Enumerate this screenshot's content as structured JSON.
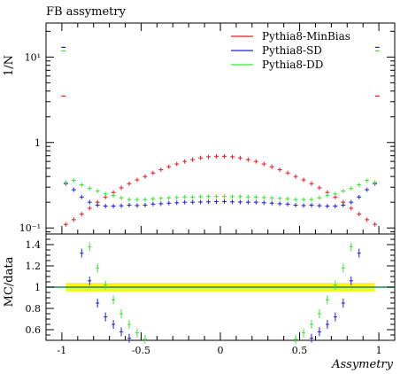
{
  "chart_data": [
    {
      "type": "scatter",
      "title": "FB assymetry",
      "ylabel": "1/N",
      "ylim": [
        0.085,
        25
      ],
      "yscale": "log",
      "yticks": [
        {
          "value": 0.1,
          "label": "10⁻¹"
        },
        {
          "value": 1,
          "label": "1"
        },
        {
          "value": 10,
          "label": "10¹"
        }
      ],
      "xlim": [
        -1.1,
        1.1
      ],
      "legend_position": "top-right",
      "series": [
        {
          "name": "Pythia8-MinBias",
          "color": "#e8191e",
          "x": [
            -0.975,
            -0.925,
            -0.875,
            -0.825,
            -0.775,
            -0.725,
            -0.675,
            -0.625,
            -0.575,
            -0.525,
            -0.475,
            -0.425,
            -0.375,
            -0.325,
            -0.275,
            -0.225,
            -0.175,
            -0.125,
            -0.075,
            -0.025,
            0.025,
            0.075,
            0.125,
            0.175,
            0.225,
            0.275,
            0.325,
            0.375,
            0.425,
            0.475,
            0.525,
            0.575,
            0.625,
            0.675,
            0.725,
            0.775,
            0.825,
            0.875,
            0.925,
            0.975
          ],
          "y": [
            0.11,
            0.125,
            0.145,
            0.17,
            0.2,
            0.23,
            0.26,
            0.295,
            0.33,
            0.365,
            0.4,
            0.44,
            0.48,
            0.52,
            0.56,
            0.6,
            0.63,
            0.66,
            0.68,
            0.69,
            0.69,
            0.68,
            0.66,
            0.63,
            0.6,
            0.56,
            0.52,
            0.48,
            0.44,
            0.4,
            0.365,
            0.33,
            0.295,
            0.26,
            0.23,
            0.2,
            0.17,
            0.145,
            0.125,
            0.11
          ]
        },
        {
          "name": "Pythia8-SD",
          "color": "#1e1edc",
          "x": [
            -0.975,
            -0.925,
            -0.875,
            -0.825,
            -0.775,
            -0.725,
            -0.675,
            -0.625,
            -0.575,
            -0.525,
            -0.475,
            -0.425,
            -0.375,
            -0.325,
            -0.275,
            -0.225,
            -0.175,
            -0.125,
            -0.075,
            -0.025,
            0.025,
            0.075,
            0.125,
            0.175,
            0.225,
            0.275,
            0.325,
            0.375,
            0.425,
            0.475,
            0.525,
            0.575,
            0.625,
            0.675,
            0.725,
            0.775,
            0.825,
            0.875,
            0.925,
            0.975
          ],
          "y": [
            0.33,
            0.28,
            0.23,
            0.2,
            0.185,
            0.18,
            0.18,
            0.182,
            0.185,
            0.183,
            0.185,
            0.19,
            0.192,
            0.195,
            0.197,
            0.2,
            0.2,
            0.201,
            0.202,
            0.203,
            0.203,
            0.202,
            0.201,
            0.2,
            0.2,
            0.197,
            0.195,
            0.192,
            0.19,
            0.185,
            0.183,
            0.185,
            0.182,
            0.18,
            0.18,
            0.185,
            0.2,
            0.23,
            0.28,
            0.33
          ]
        },
        {
          "name": "Pythia8-DD",
          "color": "#37e637",
          "x": [
            -0.975,
            -0.925,
            -0.875,
            -0.825,
            -0.775,
            -0.725,
            -0.675,
            -0.625,
            -0.575,
            -0.525,
            -0.475,
            -0.425,
            -0.375,
            -0.325,
            -0.275,
            -0.225,
            -0.175,
            -0.125,
            -0.075,
            -0.025,
            0.025,
            0.075,
            0.125,
            0.175,
            0.225,
            0.275,
            0.325,
            0.375,
            0.425,
            0.475,
            0.525,
            0.575,
            0.625,
            0.675,
            0.725,
            0.775,
            0.825,
            0.875,
            0.925,
            0.975
          ],
          "y": [
            0.34,
            0.36,
            0.32,
            0.29,
            0.27,
            0.25,
            0.24,
            0.225,
            0.215,
            0.215,
            0.215,
            0.22,
            0.222,
            0.225,
            0.227,
            0.23,
            0.23,
            0.232,
            0.233,
            0.234,
            0.234,
            0.233,
            0.232,
            0.23,
            0.23,
            0.227,
            0.225,
            0.222,
            0.22,
            0.215,
            0.215,
            0.215,
            0.225,
            0.24,
            0.25,
            0.27,
            0.29,
            0.32,
            0.36,
            0.34
          ]
        }
      ],
      "overflow_markers": [
        {
          "series": "Pythia8-SD",
          "x": -0.99,
          "y": 13
        },
        {
          "series": "Pythia8-DD",
          "x": -0.99,
          "y": 11.8
        },
        {
          "series": "Pythia8-MinBias",
          "x": -0.99,
          "y": 3.5
        },
        {
          "series": "Pythia8-SD",
          "x": 0.99,
          "y": 13
        },
        {
          "series": "Pythia8-DD",
          "x": 0.99,
          "y": 11.8
        },
        {
          "series": "Pythia8-MinBias",
          "x": 0.99,
          "y": 3.5
        }
      ]
    },
    {
      "type": "scatter",
      "ylabel": "MC/data",
      "xlabel": "Assymetry",
      "xlim": [
        -1.1,
        1.1
      ],
      "ylim": [
        0.5,
        1.5
      ],
      "yticks": [
        0.6,
        0.8,
        1,
        1.2,
        1.4
      ],
      "xticks": [
        -1,
        -0.5,
        0,
        0.5,
        1
      ],
      "reference_line": {
        "y": 1.0,
        "color": "#1e8c50"
      },
      "reference_band": {
        "x": [
          -0.975,
          0.975
        ],
        "y": [
          0.96,
          1.04
        ],
        "color": "#f5f51e"
      },
      "series": [
        {
          "name": "Pythia8-SD",
          "color": "#1e1edc",
          "x": [
            -0.875,
            -0.825,
            -0.775,
            -0.725,
            -0.675,
            -0.625,
            -0.575,
            0.575,
            0.625,
            0.675,
            0.725,
            0.775,
            0.825,
            0.875
          ],
          "y": [
            1.32,
            1.06,
            0.85,
            0.72,
            0.65,
            0.58,
            0.52,
            0.52,
            0.58,
            0.65,
            0.72,
            0.85,
            1.06,
            1.32
          ]
        },
        {
          "name": "Pythia8-DD",
          "color": "#37e637",
          "x": [
            -0.825,
            -0.775,
            -0.725,
            -0.675,
            -0.625,
            -0.575,
            -0.525,
            -0.475,
            0.475,
            0.525,
            0.575,
            0.625,
            0.675,
            0.725,
            0.775,
            0.825
          ],
          "y": [
            1.38,
            1.18,
            1.02,
            0.88,
            0.75,
            0.65,
            0.57,
            0.51,
            0.51,
            0.57,
            0.65,
            0.75,
            0.88,
            1.02,
            1.18,
            1.38
          ]
        }
      ]
    }
  ]
}
